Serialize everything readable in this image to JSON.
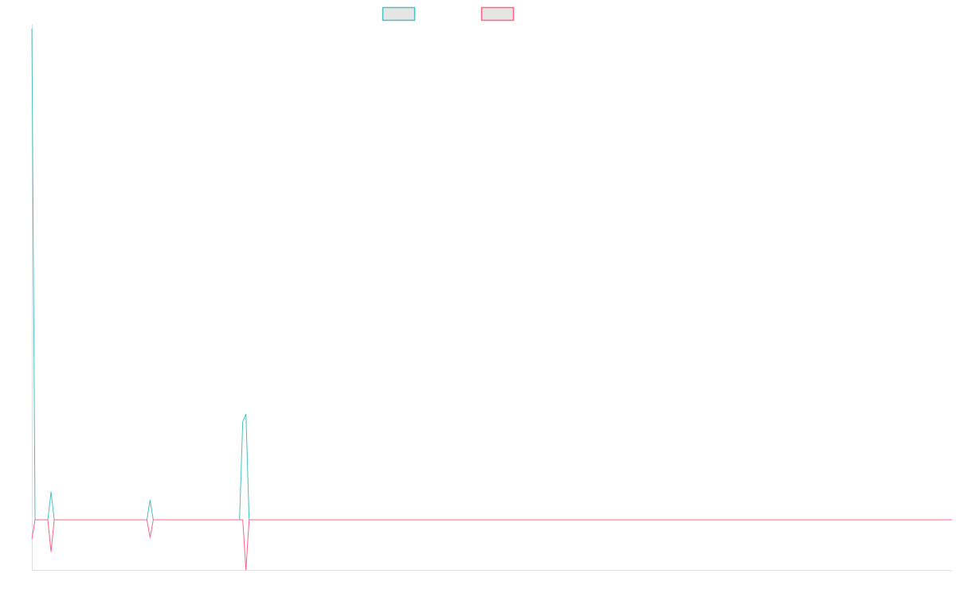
{
  "chart_data": {
    "type": "line",
    "title": "",
    "xlabel": "",
    "ylabel": "",
    "point_count": 289,
    "ylim": [
      -10.2,
      100
    ],
    "grid": false,
    "legend_position": "top",
    "series": [
      {
        "color": "#4bc0c0",
        "nonzero_points": [
          [
            0,
            100
          ],
          [
            6,
            5.7
          ],
          [
            37,
            4.0
          ],
          [
            66,
            20
          ],
          [
            67,
            21.5
          ]
        ]
      },
      {
        "color": "#ff6384",
        "nonzero_points": [
          [
            0,
            -3.9
          ],
          [
            6,
            -6.5
          ],
          [
            37,
            -3.6
          ],
          [
            67,
            -10.2
          ]
        ]
      }
    ]
  }
}
